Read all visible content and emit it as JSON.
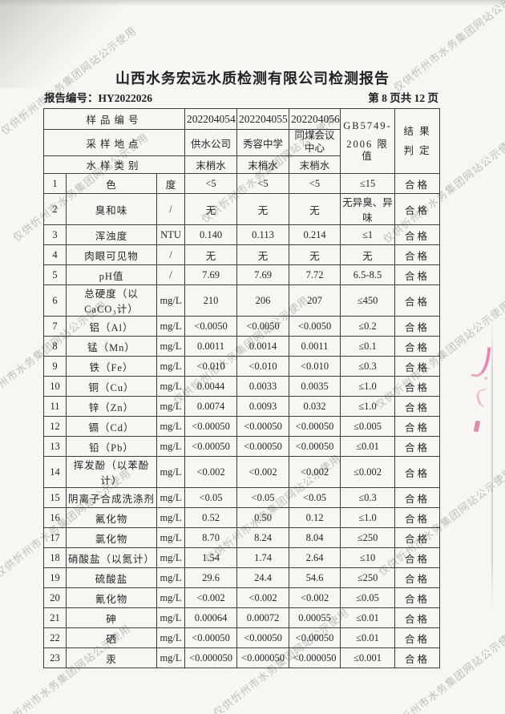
{
  "watermark": {
    "text": "仅供忻州市水务集团网站公示使用"
  },
  "header": {
    "title": "山西水务宏远水质检测有限公司检测报告",
    "report_no": "报告编号：HY2022026",
    "page_info": "第 8 页共 12 页"
  },
  "colors": {
    "stamp_pink": "#de4d8c",
    "watermark_gray": "#94928e"
  },
  "table": {
    "sample_id_row": {
      "label": "样品编号",
      "values": [
        "202204054",
        "202204055",
        "202204056"
      ]
    },
    "location_row": {
      "label": "采样地点",
      "values": [
        "供水公司",
        "秀容中学",
        "同煤会议中心"
      ]
    },
    "type_row": {
      "label": "水样类别",
      "values": [
        "末梢水",
        "末梢水",
        "末梢水"
      ]
    },
    "limit_header": {
      "line1": "GB5749-",
      "line2": "2006 限值"
    },
    "result_header": {
      "line1": "结 果",
      "line2": "判 定"
    },
    "rows": [
      {
        "no": "1",
        "item": "色",
        "unit": "度",
        "v1": "<5",
        "v2": "<5",
        "v3": "<5",
        "limit": "≤15",
        "result": "合格"
      },
      {
        "no": "2",
        "item": "臭和味",
        "unit": "/",
        "v1": "无",
        "v2": "无",
        "v3": "无",
        "limit": "无异臭、异味",
        "result": "合格"
      },
      {
        "no": "3",
        "item": "浑浊度",
        "unit": "NTU",
        "v1": "0.140",
        "v2": "0.113",
        "v3": "0.214",
        "limit": "≤1",
        "result": "合格"
      },
      {
        "no": "4",
        "item": "肉眼可见物",
        "unit": "/",
        "v1": "无",
        "v2": "无",
        "v3": "无",
        "limit": "无",
        "result": "合格"
      },
      {
        "no": "5",
        "item": "pH值",
        "unit": "/",
        "v1": "7.69",
        "v2": "7.69",
        "v3": "7.72",
        "limit": "6.5-8.5",
        "result": "合格"
      },
      {
        "no": "6",
        "item": "总硬度（以CaCO₃计）",
        "unit": "mg/L",
        "v1": "210",
        "v2": "206",
        "v3": "207",
        "limit": "≤450",
        "result": "合格"
      },
      {
        "no": "7",
        "item": "铝（Al）",
        "unit": "mg/L",
        "v1": "<0.0050",
        "v2": "<0.0050",
        "v3": "<0.0050",
        "limit": "≤0.2",
        "result": "合格"
      },
      {
        "no": "8",
        "item": "锰（Mn）",
        "unit": "mg/L",
        "v1": "0.0011",
        "v2": "0.0014",
        "v3": "0.0011",
        "limit": "≤0.1",
        "result": "合格"
      },
      {
        "no": "9",
        "item": "铁（Fe）",
        "unit": "mg/L",
        "v1": "<0.010",
        "v2": "<0.010",
        "v3": "<0.010",
        "limit": "≤0.3",
        "result": "合格"
      },
      {
        "no": "10",
        "item": "铜（Cu）",
        "unit": "mg/L",
        "v1": "0.0044",
        "v2": "0.0033",
        "v3": "0.0035",
        "limit": "≤1.0",
        "result": "合格"
      },
      {
        "no": "11",
        "item": "锌（Zn）",
        "unit": "mg/L",
        "v1": "0.0074",
        "v2": "0.0093",
        "v3": "0.032",
        "limit": "≤1.0",
        "result": "合格"
      },
      {
        "no": "12",
        "item": "镉（Cd）",
        "unit": "mg/L",
        "v1": "<0.00050",
        "v2": "<0.00050",
        "v3": "<0.00050",
        "limit": "≤0.005",
        "result": "合格"
      },
      {
        "no": "13",
        "item": "铅（Pb）",
        "unit": "mg/L",
        "v1": "<0.00050",
        "v2": "<0.00050",
        "v3": "<0.00050",
        "limit": "≤0.01",
        "result": "合格"
      },
      {
        "no": "14",
        "item": "挥发酚（以苯酚计）",
        "unit": "mg/L",
        "v1": "<0.002",
        "v2": "<0.002",
        "v3": "<0.002",
        "limit": "≤0.002",
        "result": "合格"
      },
      {
        "no": "15",
        "item": "阴离子合成洗涤剂",
        "unit": "mg/L",
        "v1": "<0.05",
        "v2": "<0.05",
        "v3": "<0.05",
        "limit": "≤0.3",
        "result": "合格"
      },
      {
        "no": "16",
        "item": "氟化物",
        "unit": "mg/L",
        "v1": "0.52",
        "v2": "0.50",
        "v3": "0.12",
        "limit": "≤1.0",
        "result": "合格"
      },
      {
        "no": "17",
        "item": "氯化物",
        "unit": "mg/L",
        "v1": "8.70",
        "v2": "8.24",
        "v3": "8.04",
        "limit": "≤250",
        "result": "合格"
      },
      {
        "no": "18",
        "item": "硝酸盐（以氮计）",
        "unit": "mg/L",
        "v1": "1.54",
        "v2": "1.74",
        "v3": "2.64",
        "limit": "≤10",
        "result": "合格"
      },
      {
        "no": "19",
        "item": "硫酸盐",
        "unit": "mg/L",
        "v1": "29.6",
        "v2": "24.4",
        "v3": "54.6",
        "limit": "≤250",
        "result": "合格"
      },
      {
        "no": "20",
        "item": "氰化物",
        "unit": "mg/L",
        "v1": "<0.002",
        "v2": "<0.002",
        "v3": "<0.002",
        "limit": "≤0.05",
        "result": "合格"
      },
      {
        "no": "21",
        "item": "砷",
        "unit": "mg/L",
        "v1": "0.00064",
        "v2": "0.00072",
        "v3": "0.00055",
        "limit": "≤0.01",
        "result": "合格"
      },
      {
        "no": "22",
        "item": "硒",
        "unit": "mg/L",
        "v1": "<0.00050",
        "v2": "<0.00050",
        "v3": "<0.00050",
        "limit": "≤0.01",
        "result": "合格"
      },
      {
        "no": "23",
        "item": "汞",
        "unit": "mg/L",
        "v1": "<0.000050",
        "v2": "<0.000050",
        "v3": "<0.000050",
        "limit": "≤0.001",
        "result": "合格"
      }
    ]
  }
}
